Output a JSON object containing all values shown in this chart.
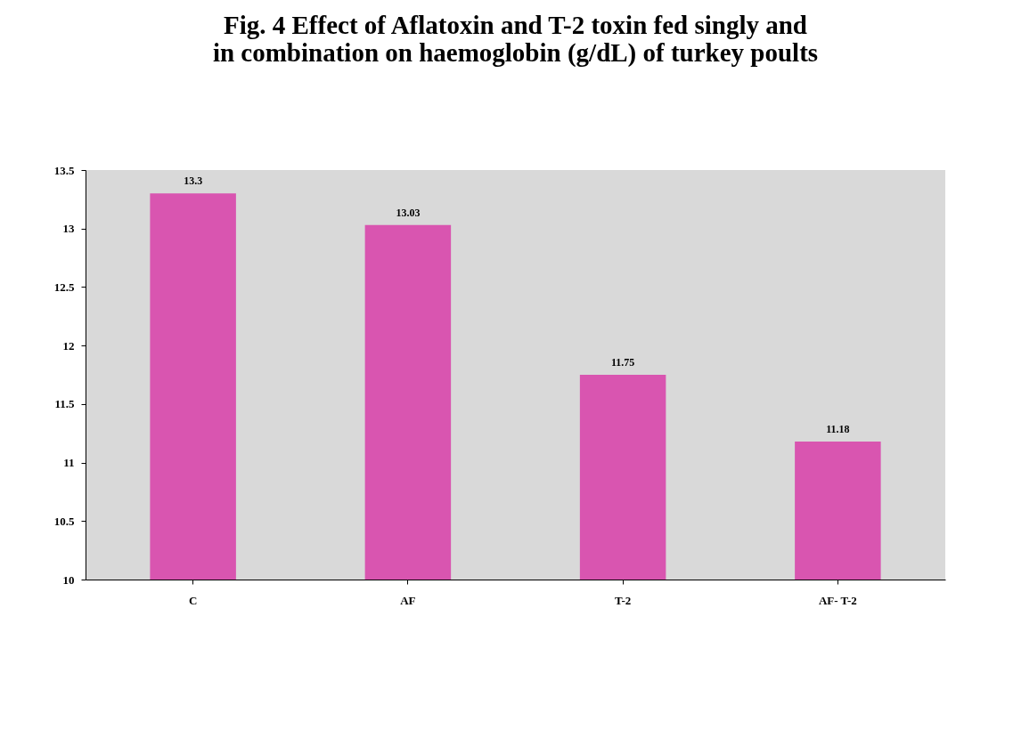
{
  "chart_data": {
    "type": "bar",
    "title": "Fig. 4  Effect of  Aflatoxin and T-2 toxin fed singly and\nin combination on  haemoglobin  (g/dL) of turkey poults",
    "categories": [
      "C",
      "AF",
      "T-2",
      "AF- T-2"
    ],
    "values": [
      13.3,
      13.03,
      11.75,
      11.18
    ],
    "color": "#d955b0",
    "ylim": [
      10,
      13.5
    ],
    "yticks": [
      10,
      10.5,
      11,
      11.5,
      12,
      12.5,
      13,
      13.5
    ],
    "grid": false,
    "data_labels": true
  }
}
